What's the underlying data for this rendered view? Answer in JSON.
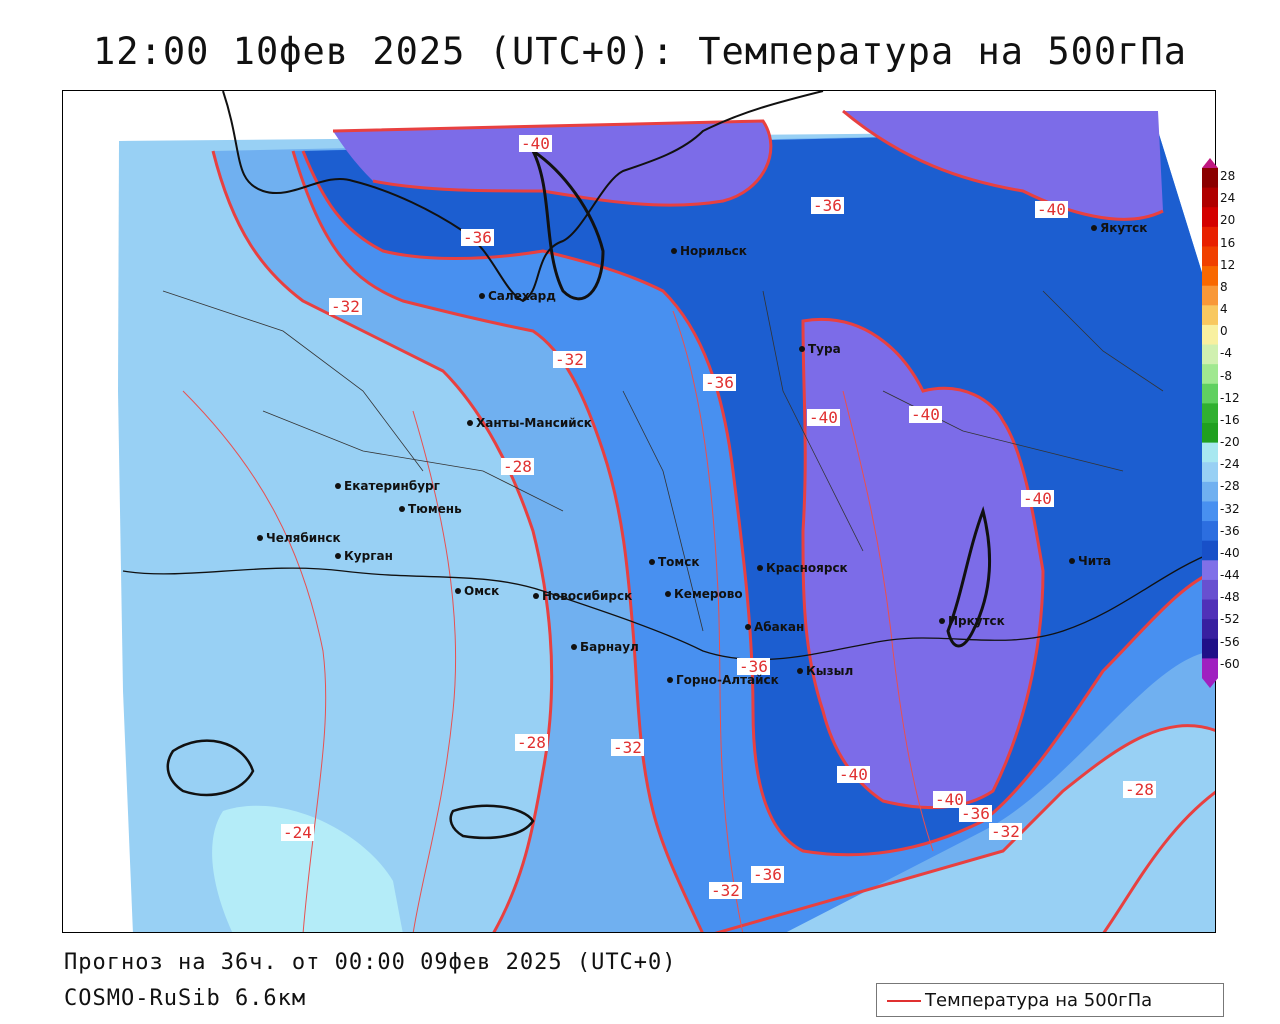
{
  "title": "12:00 10фев 2025 (UTC+0): Температура на 500гПа",
  "footer": {
    "forecast": "Прогноз на 36ч. от 00:00 09фев 2025 (UTC+0)",
    "model": "COSMO-RuSib 6.6км"
  },
  "legend": {
    "label": "Температура на 500гПа",
    "color": "#e03030"
  },
  "colorbar": {
    "ticks": [
      "28",
      "24",
      "20",
      "16",
      "12",
      "8",
      "4",
      "0",
      "-4",
      "-8",
      "-12",
      "-16",
      "-20",
      "-24",
      "-28",
      "-32",
      "-36",
      "-40",
      "-44",
      "-48",
      "-52",
      "-56",
      "-60"
    ],
    "colors": [
      "#8b0000",
      "#b00000",
      "#d40000",
      "#e82000",
      "#f04000",
      "#f86800",
      "#f89838",
      "#f8c860",
      "#f8f0a0",
      "#d0f0b0",
      "#a0e890",
      "#60d060",
      "#30b030",
      "#20a020",
      "#a8e8f0",
      "#98d0f4",
      "#70b0f0",
      "#4890f0",
      "#2c6ee0",
      "#1850c8",
      "#8070e8",
      "#6850d0",
      "#5030b8",
      "#3820a0",
      "#201088",
      "#a020c0"
    ]
  },
  "cities": [
    {
      "name": "Норильск"
    },
    {
      "name": "Якутск"
    },
    {
      "name": "Салехард"
    },
    {
      "name": "Тура"
    },
    {
      "name": "Ханты-Мансийск"
    },
    {
      "name": "Екатеринбург"
    },
    {
      "name": "Тюмень"
    },
    {
      "name": "Челябинск"
    },
    {
      "name": "Курган"
    },
    {
      "name": "Омск"
    },
    {
      "name": "Новосибирск"
    },
    {
      "name": "Томск"
    },
    {
      "name": "Кемерово"
    },
    {
      "name": "Красноярск"
    },
    {
      "name": "Барнаул"
    },
    {
      "name": "Абакан"
    },
    {
      "name": "Горно-Алтайск"
    },
    {
      "name": "Кызыл"
    },
    {
      "name": "Иркутск"
    },
    {
      "name": "Чита"
    }
  ],
  "contour_labels": [
    "-40",
    "-36",
    "-36",
    "-40",
    "-32",
    "-32",
    "-36",
    "-40",
    "-40",
    "-28",
    "-40",
    "-36",
    "-28",
    "-32",
    "-40",
    "-40",
    "-36",
    "-32",
    "-28",
    "-24",
    "-36",
    "-32"
  ]
}
